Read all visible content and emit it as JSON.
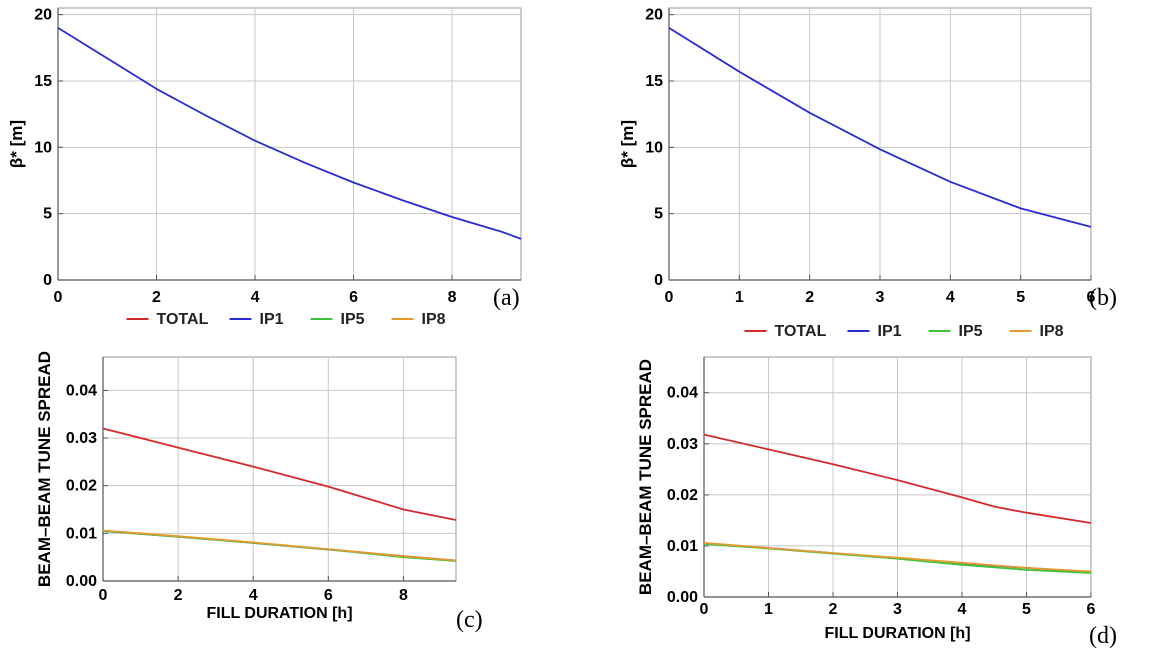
{
  "chart_data": [
    {
      "type": "line",
      "panel": "(a)",
      "ylabel": "β* [m]",
      "xlabel": "",
      "xlim": [
        0,
        9.4
      ],
      "ylim": [
        0,
        20.5
      ],
      "xticks": [
        0,
        2,
        4,
        6,
        8
      ],
      "yticks": [
        0,
        5,
        10,
        15,
        20
      ],
      "grid": true,
      "series": [
        {
          "color": "#2b2bd6",
          "x": [
            0,
            1,
            2,
            3,
            4,
            5,
            6,
            7,
            8,
            9,
            9.4
          ],
          "y": [
            19.0,
            16.7,
            14.4,
            12.4,
            10.5,
            8.85,
            7.35,
            6.0,
            4.75,
            3.65,
            3.1
          ]
        }
      ]
    },
    {
      "type": "line",
      "panel": "(b)",
      "ylabel": "β* [m]",
      "xlabel": "",
      "xlim": [
        0,
        6
      ],
      "ylim": [
        0,
        20.5
      ],
      "xticks": [
        0,
        1,
        2,
        3,
        4,
        5,
        6
      ],
      "yticks": [
        0,
        5,
        10,
        15,
        20
      ],
      "grid": true,
      "series": [
        {
          "color": "#2b2bd6",
          "x": [
            0,
            1,
            2,
            3,
            4,
            5,
            6
          ],
          "y": [
            19.0,
            15.7,
            12.6,
            9.85,
            7.4,
            5.4,
            4.0
          ]
        }
      ]
    },
    {
      "type": "line",
      "panel": "(c)",
      "ylabel": "BEAM–BEAM TUNE SPREAD",
      "xlabel": "FILL DURATION [h]",
      "xlim": [
        0,
        9.4
      ],
      "ylim": [
        0,
        0.047
      ],
      "xticks": [
        0,
        2,
        4,
        6,
        8
      ],
      "yticks": [
        0.0,
        0.01,
        0.02,
        0.03,
        0.04
      ],
      "yticklabels": [
        "0.00",
        "0.01",
        "0.02",
        "0.03",
        "0.04"
      ],
      "grid": true,
      "legend_position": "top",
      "series": [
        {
          "name": "TOTAL",
          "color": "#d42a2a",
          "x": [
            0,
            2,
            4,
            6,
            8,
            9.4
          ],
          "y": [
            0.032,
            0.028,
            0.024,
            0.0198,
            0.015,
            0.0128
          ]
        },
        {
          "name": "IP1",
          "color": "#2b2bd6",
          "x": [
            0,
            2,
            4,
            6,
            8,
            9.4
          ],
          "y": [
            0.0105,
            0.0093,
            0.008,
            0.0066,
            0.0052,
            0.0043
          ]
        },
        {
          "name": "IP5",
          "color": "#3cc43c",
          "x": [
            0,
            2,
            4,
            6,
            8,
            9.4
          ],
          "y": [
            0.0105,
            0.0093,
            0.008,
            0.0066,
            0.005,
            0.0042
          ]
        },
        {
          "name": "IP8",
          "color": "#e69a2e",
          "x": [
            0,
            2,
            4,
            6,
            8,
            9.4
          ],
          "y": [
            0.0106,
            0.0094,
            0.0081,
            0.0067,
            0.0052,
            0.0043
          ]
        }
      ]
    },
    {
      "type": "line",
      "panel": "(d)",
      "ylabel": "BEAM–BEAM TUNE SPREAD",
      "xlabel": "FILL DURATION [h]",
      "xlim": [
        0,
        6
      ],
      "ylim": [
        0,
        0.047
      ],
      "xticks": [
        0,
        1,
        2,
        3,
        4,
        5,
        6
      ],
      "yticks": [
        0.0,
        0.01,
        0.02,
        0.03,
        0.04
      ],
      "yticklabels": [
        "0.00",
        "0.01",
        "0.02",
        "0.03",
        "0.04"
      ],
      "grid": true,
      "legend_position": "top",
      "series": [
        {
          "name": "TOTAL",
          "color": "#d42a2a",
          "x": [
            0,
            1,
            2,
            3,
            4,
            4.5,
            5,
            6
          ],
          "y": [
            0.0318,
            0.0289,
            0.026,
            0.0229,
            0.0195,
            0.0177,
            0.0165,
            0.0145
          ]
        },
        {
          "name": "IP1",
          "color": "#2b2bd6",
          "x": [
            0,
            1,
            2,
            3,
            4,
            5,
            6
          ],
          "y": [
            0.0105,
            0.0096,
            0.0086,
            0.0076,
            0.0066,
            0.0057,
            0.0049
          ]
        },
        {
          "name": "IP5",
          "color": "#3cc43c",
          "x": [
            0,
            1,
            2,
            3,
            4,
            5,
            6
          ],
          "y": [
            0.0104,
            0.0095,
            0.0085,
            0.0075,
            0.0063,
            0.0053,
            0.0047
          ]
        },
        {
          "name": "IP8",
          "color": "#e69a2e",
          "x": [
            0,
            1,
            2,
            3,
            4,
            5,
            6
          ],
          "y": [
            0.0106,
            0.0096,
            0.0086,
            0.0077,
            0.0067,
            0.0057,
            0.005
          ]
        }
      ]
    }
  ]
}
